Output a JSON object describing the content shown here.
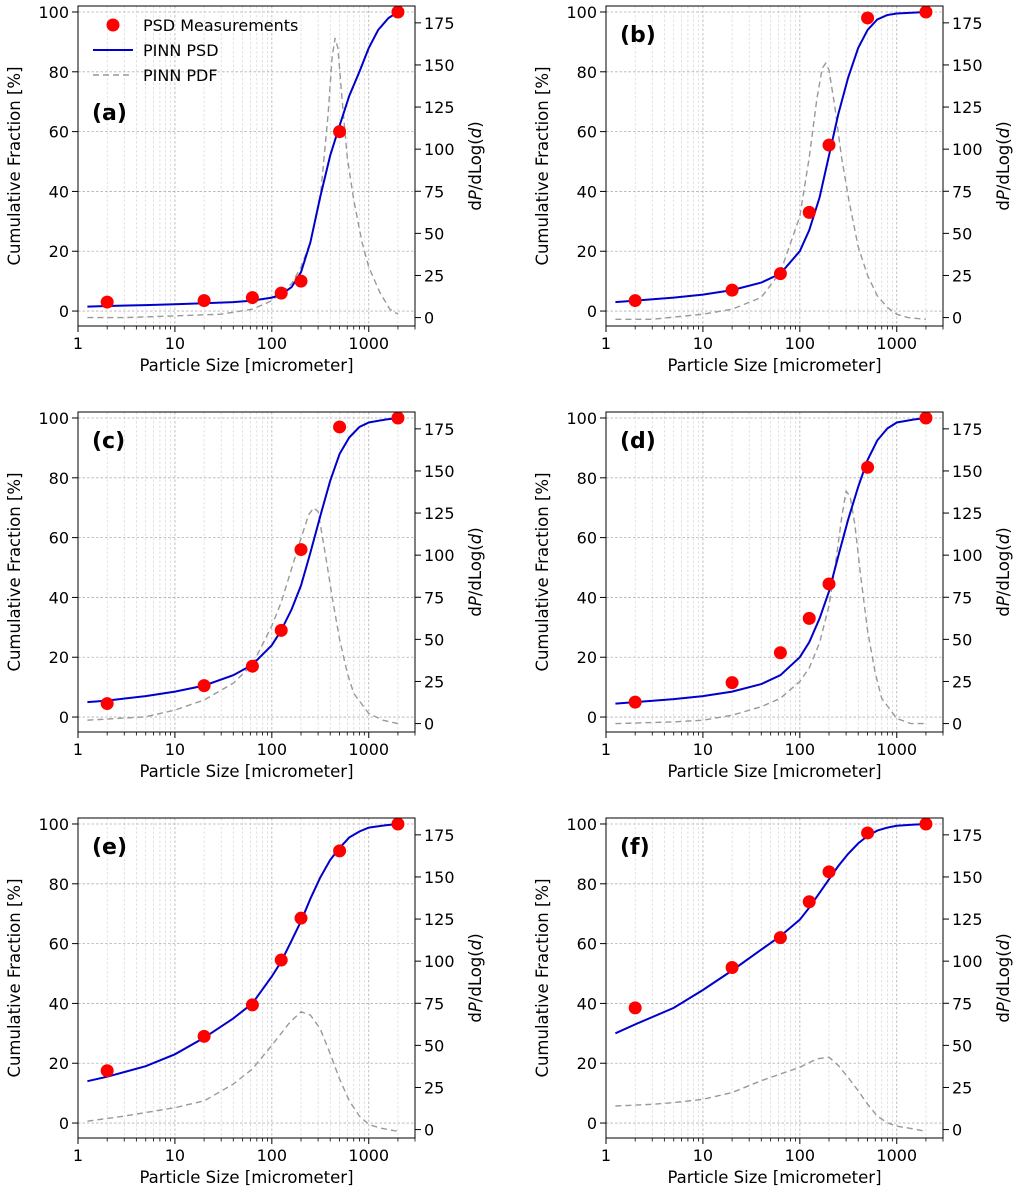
{
  "figure": {
    "legend": {
      "measurements_label": "PSD Measurements",
      "psd_label": "PINN PSD",
      "pdf_label": "PINN PDF"
    }
  },
  "chart_data": [
    {
      "type": "line",
      "panel_label": "(a)",
      "xlabel": "Particle Size [micrometer]",
      "ylabel": "Cumulative Fraction [%]",
      "y2label_prefix": "d",
      "y2label_P": "P",
      "y2label_mid": "/dLog(",
      "y2label_d": "d",
      "y2label_suffix": ")",
      "xscale": "log",
      "xlim": [
        1,
        3000
      ],
      "ylim": [
        -5,
        102
      ],
      "y2lim": [
        -5,
        185
      ],
      "x_ticks": [
        1,
        10,
        100,
        1000
      ],
      "x_tick_labels": [
        "1",
        "10",
        "100",
        "1000"
      ],
      "y_ticks": [
        0,
        20,
        40,
        60,
        80,
        100
      ],
      "y_tick_labels": [
        "0",
        "20",
        "40",
        "60",
        "80",
        "100"
      ],
      "y2_ticks": [
        0,
        25,
        50,
        75,
        100,
        125,
        150,
        175
      ],
      "y2_tick_labels": [
        "0",
        "25",
        "50",
        "75",
        "100",
        "125",
        "150",
        "175"
      ],
      "grid": true,
      "legend_position": "top-left",
      "measurements": {
        "x": [
          2,
          20,
          63,
          125,
          200,
          500,
          2000
        ],
        "y": [
          3,
          3.5,
          4.5,
          6,
          10,
          60,
          100
        ]
      },
      "psd": {
        "x": [
          1.25,
          2,
          5,
          10,
          20,
          40,
          63,
          100,
          125,
          160,
          200,
          250,
          315,
          400,
          500,
          630,
          800,
          1000,
          1250,
          1600,
          2000
        ],
        "y": [
          1.5,
          1.7,
          2,
          2.3,
          2.6,
          3,
          3.5,
          4.5,
          5.5,
          8,
          13,
          23,
          38,
          52,
          62,
          72,
          80,
          88,
          94,
          98,
          100
        ]
      },
      "pdf": {
        "x": [
          1.25,
          3,
          10,
          30,
          63,
          100,
          160,
          200,
          250,
          315,
          380,
          420,
          450,
          480,
          530,
          600,
          700,
          850,
          1000,
          1300,
          1650,
          2000
        ],
        "y": [
          0,
          0,
          1,
          2,
          5,
          10,
          20,
          30,
          45,
          70,
          120,
          155,
          166,
          160,
          130,
          95,
          70,
          45,
          30,
          15,
          5,
          2
        ]
      }
    },
    {
      "type": "line",
      "panel_label": "(b)",
      "xlabel": "Particle Size [micrometer]",
      "ylabel": "Cumulative Fraction [%]",
      "y2label_prefix": "d",
      "y2label_P": "P",
      "y2label_mid": "/dLog(",
      "y2label_d": "d",
      "y2label_suffix": ")",
      "xscale": "log",
      "xlim": [
        1,
        3000
      ],
      "ylim": [
        -5,
        102
      ],
      "y2lim": [
        -5,
        185
      ],
      "x_ticks": [
        1,
        10,
        100,
        1000
      ],
      "x_tick_labels": [
        "1",
        "10",
        "100",
        "1000"
      ],
      "y_ticks": [
        0,
        20,
        40,
        60,
        80,
        100
      ],
      "y_tick_labels": [
        "0",
        "20",
        "40",
        "60",
        "80",
        "100"
      ],
      "y2_ticks": [
        0,
        25,
        50,
        75,
        100,
        125,
        150,
        175
      ],
      "y2_tick_labels": [
        "0",
        "25",
        "50",
        "75",
        "100",
        "125",
        "150",
        "175"
      ],
      "grid": true,
      "legend_position": "",
      "measurements": {
        "x": [
          2,
          20,
          63,
          125,
          200,
          500,
          2000
        ],
        "y": [
          3.5,
          7,
          12.5,
          33,
          55.5,
          98,
          100
        ]
      },
      "psd": {
        "x": [
          1.25,
          2,
          5,
          10,
          20,
          40,
          63,
          100,
          125,
          160,
          200,
          250,
          315,
          400,
          500,
          630,
          800,
          1000,
          1500,
          2000
        ],
        "y": [
          3,
          3.5,
          4.5,
          5.5,
          7,
          9.5,
          12.5,
          20,
          27,
          38,
          52,
          66,
          78,
          88,
          94,
          97.5,
          99,
          99.5,
          99.8,
          100
        ]
      },
      "pdf": {
        "x": [
          1.25,
          3,
          10,
          20,
          40,
          63,
          100,
          125,
          150,
          170,
          185,
          200,
          230,
          270,
          320,
          400,
          500,
          630,
          800,
          1000,
          1300,
          2000
        ],
        "y": [
          -1,
          -1,
          2,
          5,
          12,
          27,
          60,
          95,
          130,
          148,
          151,
          147,
          125,
          95,
          70,
          42,
          25,
          13,
          6,
          2,
          0,
          -1
        ]
      }
    },
    {
      "type": "line",
      "panel_label": "(c)",
      "xlabel": "Particle Size [micrometer]",
      "ylabel": "Cumulative Fraction [%]",
      "y2label_prefix": "d",
      "y2label_P": "P",
      "y2label_mid": "/dLog(",
      "y2label_d": "d",
      "y2label_suffix": ")",
      "xscale": "log",
      "xlim": [
        1,
        3000
      ],
      "ylim": [
        -5,
        102
      ],
      "y2lim": [
        -5,
        185
      ],
      "x_ticks": [
        1,
        10,
        100,
        1000
      ],
      "x_tick_labels": [
        "1",
        "10",
        "100",
        "1000"
      ],
      "y_ticks": [
        0,
        20,
        40,
        60,
        80,
        100
      ],
      "y_tick_labels": [
        "0",
        "20",
        "40",
        "60",
        "80",
        "100"
      ],
      "y2_ticks": [
        0,
        25,
        50,
        75,
        100,
        125,
        150,
        175
      ],
      "y2_tick_labels": [
        "0",
        "25",
        "50",
        "75",
        "100",
        "125",
        "150",
        "175"
      ],
      "grid": true,
      "legend_position": "",
      "measurements": {
        "x": [
          2,
          20,
          63,
          125,
          200,
          500,
          2000
        ],
        "y": [
          4.5,
          10.5,
          17,
          29,
          56,
          97,
          100
        ]
      },
      "psd": {
        "x": [
          1.25,
          2,
          5,
          10,
          20,
          40,
          63,
          100,
          125,
          160,
          200,
          250,
          315,
          400,
          500,
          630,
          800,
          1000,
          1500,
          2000
        ],
        "y": [
          5,
          5.5,
          7,
          8.5,
          10.5,
          14,
          17.5,
          24,
          29,
          36,
          44,
          55,
          67,
          79,
          88,
          93.5,
          97,
          98.5,
          99.5,
          100
        ]
      },
      "pdf": {
        "x": [
          1.25,
          5,
          10,
          20,
          40,
          63,
          100,
          125,
          160,
          200,
          240,
          270,
          300,
          330,
          370,
          420,
          500,
          600,
          700,
          1000,
          1400,
          2000
        ],
        "y": [
          2,
          4,
          8,
          14,
          24,
          35,
          58,
          72,
          92,
          110,
          124,
          128,
          126,
          112,
          95,
          75,
          50,
          30,
          18,
          6,
          2,
          0
        ]
      }
    },
    {
      "type": "line",
      "panel_label": "(d)",
      "xlabel": "Particle Size [micrometer]",
      "ylabel": "Cumulative Fraction [%]",
      "y2label_prefix": "d",
      "y2label_P": "P",
      "y2label_mid": "/dLog(",
      "y2label_d": "d",
      "y2label_suffix": ")",
      "xscale": "log",
      "xlim": [
        1,
        3000
      ],
      "ylim": [
        -5,
        102
      ],
      "y2lim": [
        -5,
        185
      ],
      "x_ticks": [
        1,
        10,
        100,
        1000
      ],
      "x_tick_labels": [
        "1",
        "10",
        "100",
        "1000"
      ],
      "y_ticks": [
        0,
        20,
        40,
        60,
        80,
        100
      ],
      "y_tick_labels": [
        "0",
        "20",
        "40",
        "60",
        "80",
        "100"
      ],
      "y2_ticks": [
        0,
        25,
        50,
        75,
        100,
        125,
        150,
        175
      ],
      "y2_tick_labels": [
        "0",
        "25",
        "50",
        "75",
        "100",
        "125",
        "150",
        "175"
      ],
      "grid": true,
      "legend_position": "",
      "measurements": {
        "x": [
          2,
          20,
          63,
          125,
          200,
          500,
          2000
        ],
        "y": [
          5,
          11.5,
          21.5,
          33,
          44.5,
          83.5,
          100
        ]
      },
      "psd": {
        "x": [
          1.25,
          2,
          5,
          10,
          20,
          40,
          63,
          100,
          125,
          160,
          200,
          250,
          315,
          400,
          500,
          630,
          800,
          1000,
          1500,
          2000
        ],
        "y": [
          4.5,
          5,
          6,
          7,
          8.5,
          11,
          14,
          20,
          25,
          33,
          42,
          54,
          66,
          77,
          86,
          92.5,
          96.5,
          98.5,
          99.5,
          100
        ]
      },
      "pdf": {
        "x": [
          1.25,
          5,
          10,
          20,
          40,
          63,
          100,
          125,
          160,
          200,
          240,
          270,
          300,
          330,
          370,
          420,
          500,
          600,
          700,
          1000,
          1400,
          2000
        ],
        "y": [
          0,
          1,
          2,
          5,
          10,
          15,
          25,
          33,
          48,
          70,
          100,
          122,
          138,
          135,
          118,
          90,
          55,
          30,
          15,
          3,
          0,
          0
        ]
      }
    },
    {
      "type": "line",
      "panel_label": "(e)",
      "xlabel": "Particle Size [micrometer]",
      "ylabel": "Cumulative Fraction [%]",
      "y2label_prefix": "d",
      "y2label_P": "P",
      "y2label_mid": "/dLog(",
      "y2label_d": "d",
      "y2label_suffix": ")",
      "xscale": "log",
      "xlim": [
        1,
        3000
      ],
      "ylim": [
        -5,
        102
      ],
      "y2lim": [
        -5,
        185
      ],
      "x_ticks": [
        1,
        10,
        100,
        1000
      ],
      "x_tick_labels": [
        "1",
        "10",
        "100",
        "1000"
      ],
      "y_ticks": [
        0,
        20,
        40,
        60,
        80,
        100
      ],
      "y_tick_labels": [
        "0",
        "20",
        "40",
        "60",
        "80",
        "100"
      ],
      "y2_ticks": [
        0,
        25,
        50,
        75,
        100,
        125,
        150,
        175
      ],
      "y2_tick_labels": [
        "0",
        "25",
        "50",
        "75",
        "100",
        "125",
        "150",
        "175"
      ],
      "grid": true,
      "legend_position": "",
      "measurements": {
        "x": [
          2,
          20,
          63,
          125,
          200,
          500,
          2000
        ],
        "y": [
          17.5,
          29,
          39.5,
          54.5,
          68.5,
          91,
          100
        ]
      },
      "psd": {
        "x": [
          1.25,
          2,
          5,
          10,
          20,
          40,
          63,
          100,
          125,
          160,
          200,
          250,
          315,
          400,
          500,
          630,
          800,
          1000,
          1500,
          2000
        ],
        "y": [
          14,
          15.5,
          19,
          23,
          28.5,
          35,
          40,
          49,
          54,
          61,
          67.5,
          75,
          82,
          88,
          92,
          95.5,
          97.5,
          98.8,
          99.6,
          100
        ]
      },
      "pdf": {
        "x": [
          1.25,
          3,
          10,
          20,
          40,
          63,
          100,
          150,
          200,
          250,
          315,
          400,
          500,
          630,
          800,
          1000,
          1300,
          1600,
          2000
        ],
        "y": [
          5,
          8,
          13,
          17,
          27,
          36,
          50,
          63,
          70,
          68,
          60,
          45,
          30,
          17,
          8,
          3,
          1,
          0,
          -1
        ]
      }
    },
    {
      "type": "line",
      "panel_label": "(f)",
      "xlabel": "Particle Size [micrometer]",
      "ylabel": "Cumulative Fraction [%]",
      "y2label_prefix": "d",
      "y2label_P": "P",
      "y2label_mid": "/dLog(",
      "y2label_d": "d",
      "y2label_suffix": ")",
      "xscale": "log",
      "xlim": [
        1,
        3000
      ],
      "ylim": [
        -5,
        102
      ],
      "y2lim": [
        -5,
        185
      ],
      "x_ticks": [
        1,
        10,
        100,
        1000
      ],
      "x_tick_labels": [
        "1",
        "10",
        "100",
        "1000"
      ],
      "y_ticks": [
        0,
        20,
        40,
        60,
        80,
        100
      ],
      "y_tick_labels": [
        "0",
        "20",
        "40",
        "60",
        "80",
        "100"
      ],
      "y2_ticks": [
        0,
        25,
        50,
        75,
        100,
        125,
        150,
        175
      ],
      "y2_tick_labels": [
        "0",
        "25",
        "50",
        "75",
        "100",
        "125",
        "150",
        "175"
      ],
      "grid": true,
      "legend_position": "",
      "measurements": {
        "x": [
          2,
          20,
          63,
          125,
          200,
          500,
          2000
        ],
        "y": [
          38.5,
          52,
          62,
          74,
          84,
          97,
          100
        ]
      },
      "psd": {
        "x": [
          1.25,
          2,
          5,
          10,
          20,
          40,
          63,
          100,
          125,
          160,
          200,
          250,
          315,
          400,
          500,
          630,
          800,
          1000,
          1500,
          2000
        ],
        "y": [
          30,
          33,
          38.5,
          44.5,
          51,
          58,
          62.5,
          68,
          72,
          77,
          81.5,
          86,
          90,
          93.5,
          96,
          97.8,
          98.8,
          99.4,
          99.8,
          100
        ]
      },
      "pdf": {
        "x": [
          1.25,
          3,
          5,
          10,
          20,
          40,
          63,
          100,
          150,
          200,
          250,
          315,
          400,
          500,
          630,
          800,
          1000,
          1300,
          2000
        ],
        "y": [
          14,
          15,
          16,
          18,
          22,
          29,
          33,
          37,
          42,
          43,
          38,
          31,
          23,
          15,
          8,
          4,
          2,
          1,
          -1
        ]
      }
    }
  ]
}
